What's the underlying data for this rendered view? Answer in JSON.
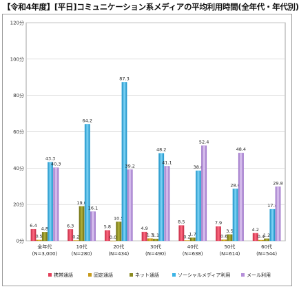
{
  "title": "【令和4年度】[平日]コミュニケーション系メディアの平均利用時間(全年代・年代別)",
  "colors": {
    "携帯通話": "#e3405a",
    "固定通話": "#c79a1a",
    "ネット通話": "#8a8a20",
    "ソーシャルメディア利用": "#3cb4e6",
    "メール利用": "#b58fd9"
  },
  "chart_data": {
    "type": "bar",
    "y_unit": "分",
    "ylim": [
      0,
      120
    ],
    "yticks": [
      "0分",
      "20分",
      "40分",
      "60分",
      "80分",
      "100分",
      "120分"
    ],
    "grid": true,
    "legend_position": "bottom",
    "categories": [
      {
        "label": "全年代",
        "sub": "(N=3,000)"
      },
      {
        "label": "10代",
        "sub": "(N=280)"
      },
      {
        "label": "20代",
        "sub": "(N=434)"
      },
      {
        "label": "30代",
        "sub": "(N=490)"
      },
      {
        "label": "40代",
        "sub": "(N=638)"
      },
      {
        "label": "50代",
        "sub": "(N=614)"
      },
      {
        "label": "60代",
        "sub": "(N=544)"
      }
    ],
    "series": [
      {
        "name": "携帯通話",
        "values": [
          6.4,
          6.3,
          5.8,
          4.9,
          8.5,
          7.9,
          4.2
        ]
      },
      {
        "name": "固定通話",
        "values": [
          0.5,
          0.2,
          0.0,
          1.3,
          0.2,
          0.6,
          0.4
        ]
      },
      {
        "name": "ネット通話",
        "values": [
          4.8,
          19.0,
          10.5,
          1.1,
          1.7,
          3.5,
          1.2
        ]
      },
      {
        "name": "ソーシャルメディア利用",
        "values": [
          43.3,
          64.2,
          87.3,
          48.2,
          38.6,
          28.6,
          17.4
        ]
      },
      {
        "name": "メール利用",
        "values": [
          40.3,
          16.1,
          39.2,
          41.1,
          52.4,
          48.4,
          29.8
        ]
      }
    ]
  }
}
